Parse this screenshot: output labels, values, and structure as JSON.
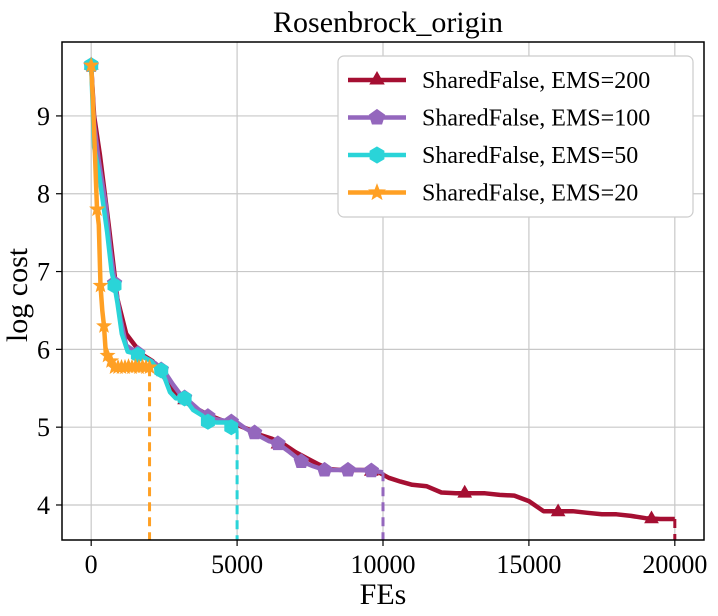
{
  "chart_data": {
    "type": "line",
    "title": "Rosenbrock_origin",
    "xlabel": "FEs",
    "ylabel": "log cost",
    "xlim": [
      -1000,
      21000
    ],
    "ylim": [
      3.55,
      9.95
    ],
    "xticks": [
      0,
      5000,
      10000,
      15000,
      20000
    ],
    "xtick_labels": [
      "0",
      "5000",
      "10000",
      "15000",
      "20000"
    ],
    "yticks": [
      4,
      5,
      6,
      7,
      8,
      9
    ],
    "ytick_labels": [
      "4",
      "5",
      "6",
      "7",
      "8",
      "9"
    ],
    "grid": true,
    "legend_position": "top-right",
    "series": [
      {
        "name": "SharedFalse, EMS=200",
        "color": "#a50f32",
        "marker": "triangle",
        "end_x": 20000,
        "x": [
          0,
          100,
          300,
          600,
          900,
          1200,
          1500,
          1800,
          2100,
          2400,
          2700,
          3000,
          3400,
          3800,
          4200,
          4600,
          5000,
          5400,
          5800,
          6200,
          6600,
          7000,
          7400,
          7800,
          8200,
          8600,
          9000,
          9400,
          9800,
          10200,
          10600,
          11000,
          11500,
          12000,
          12500,
          13000,
          13500,
          14000,
          14500,
          15000,
          15500,
          16000,
          16500,
          17000,
          17500,
          18000,
          18500,
          19000,
          19500,
          20000
        ],
        "y": [
          9.65,
          9.0,
          8.5,
          7.6,
          6.65,
          6.2,
          6.05,
          5.92,
          5.85,
          5.7,
          5.52,
          5.38,
          5.28,
          5.2,
          5.13,
          5.07,
          5.03,
          4.97,
          4.9,
          4.85,
          4.78,
          4.68,
          4.6,
          4.52,
          4.46,
          4.45,
          4.45,
          4.45,
          4.43,
          4.35,
          4.3,
          4.26,
          4.24,
          4.16,
          4.15,
          4.15,
          4.15,
          4.13,
          4.12,
          4.05,
          3.92,
          3.92,
          3.92,
          3.9,
          3.88,
          3.88,
          3.86,
          3.83,
          3.82,
          3.82
        ],
        "marker_x": [
          0,
          3200,
          6400,
          9600,
          12800,
          16000,
          19200
        ],
        "marker_y": [
          9.65,
          5.35,
          4.78,
          4.43,
          4.15,
          3.91,
          3.82
        ]
      },
      {
        "name": "SharedFalse, EMS=100",
        "color": "#9467bd",
        "marker": "pentagon",
        "end_x": 10000,
        "x": [
          0,
          100,
          250,
          500,
          650,
          800,
          1000,
          1200,
          1400,
          1600,
          1900,
          2200,
          2500,
          2800,
          3100,
          3400,
          3700,
          4000,
          4300,
          4600,
          4800,
          5000,
          5300,
          5700,
          6100,
          6400,
          6800,
          7200,
          7600,
          8000,
          8400,
          8800,
          9200,
          9600,
          10000
        ],
        "y": [
          9.65,
          8.9,
          8.45,
          7.85,
          7.3,
          6.88,
          6.4,
          6.05,
          6.0,
          5.95,
          5.88,
          5.82,
          5.72,
          5.55,
          5.4,
          5.32,
          5.22,
          5.15,
          5.1,
          5.08,
          5.08,
          5.06,
          4.98,
          4.9,
          4.82,
          4.79,
          4.68,
          4.56,
          4.5,
          4.45,
          4.45,
          4.45,
          4.45,
          4.44,
          4.42
        ],
        "marker_x": [
          0,
          800,
          1600,
          2400,
          3200,
          4000,
          4800,
          5600,
          6400,
          7200,
          8000,
          8800,
          9600
        ],
        "marker_y": [
          9.65,
          6.85,
          5.95,
          5.74,
          5.38,
          5.14,
          5.07,
          4.93,
          4.79,
          4.56,
          4.45,
          4.45,
          4.44
        ]
      },
      {
        "name": "SharedFalse, EMS=50",
        "color": "#2ad4d8",
        "marker": "hexagon",
        "end_x": 5000,
        "x": [
          0,
          100,
          250,
          400,
          550,
          700,
          800,
          900,
          1050,
          1250,
          1450,
          1600,
          1800,
          2050,
          2300,
          2500,
          2700,
          2900,
          3200,
          3500,
          3800,
          4000,
          4300,
          4600,
          4800,
          5000
        ],
        "y": [
          9.65,
          8.6,
          8.3,
          7.9,
          7.5,
          7.0,
          6.82,
          6.6,
          6.2,
          5.97,
          5.95,
          5.93,
          5.9,
          5.85,
          5.73,
          5.65,
          5.45,
          5.37,
          5.37,
          5.22,
          5.15,
          5.07,
          5.06,
          5.06,
          5.06,
          4.96
        ],
        "marker_x": [
          0,
          800,
          1600,
          2400,
          3200,
          4000,
          4800
        ],
        "marker_y": [
          9.65,
          6.82,
          5.93,
          5.73,
          5.37,
          5.07,
          5.0
        ]
      },
      {
        "name": "SharedFalse, EMS=20",
        "color": "#ffa024",
        "marker": "star",
        "end_x": 2000,
        "x": [
          0,
          60,
          120,
          200,
          260,
          320,
          380,
          440,
          500,
          560,
          620,
          680,
          740,
          800,
          860,
          920,
          980,
          1040,
          1100,
          1160,
          1220,
          1280,
          1340,
          1400,
          1460,
          1520,
          1580,
          1640,
          1700,
          1760,
          1820,
          1880,
          1940,
          2000
        ],
        "y": [
          9.65,
          9.2,
          8.6,
          7.8,
          7.6,
          6.82,
          6.5,
          6.3,
          5.95,
          5.92,
          5.88,
          5.85,
          5.78,
          5.77,
          5.77,
          5.77,
          5.78,
          5.77,
          5.77,
          5.77,
          5.77,
          5.78,
          5.77,
          5.77,
          5.77,
          5.78,
          5.77,
          5.77,
          5.77,
          5.78,
          5.77,
          5.77,
          5.77,
          5.77
        ],
        "marker_x": [
          0,
          200,
          320,
          440,
          560,
          680,
          800,
          920,
          1040,
          1160,
          1280,
          1400,
          1520,
          1640,
          1760,
          1880,
          2000
        ],
        "marker_y": [
          9.65,
          7.8,
          6.82,
          6.3,
          5.92,
          5.85,
          5.77,
          5.77,
          5.77,
          5.77,
          5.78,
          5.77,
          5.78,
          5.77,
          5.78,
          5.77,
          5.77
        ]
      }
    ]
  }
}
